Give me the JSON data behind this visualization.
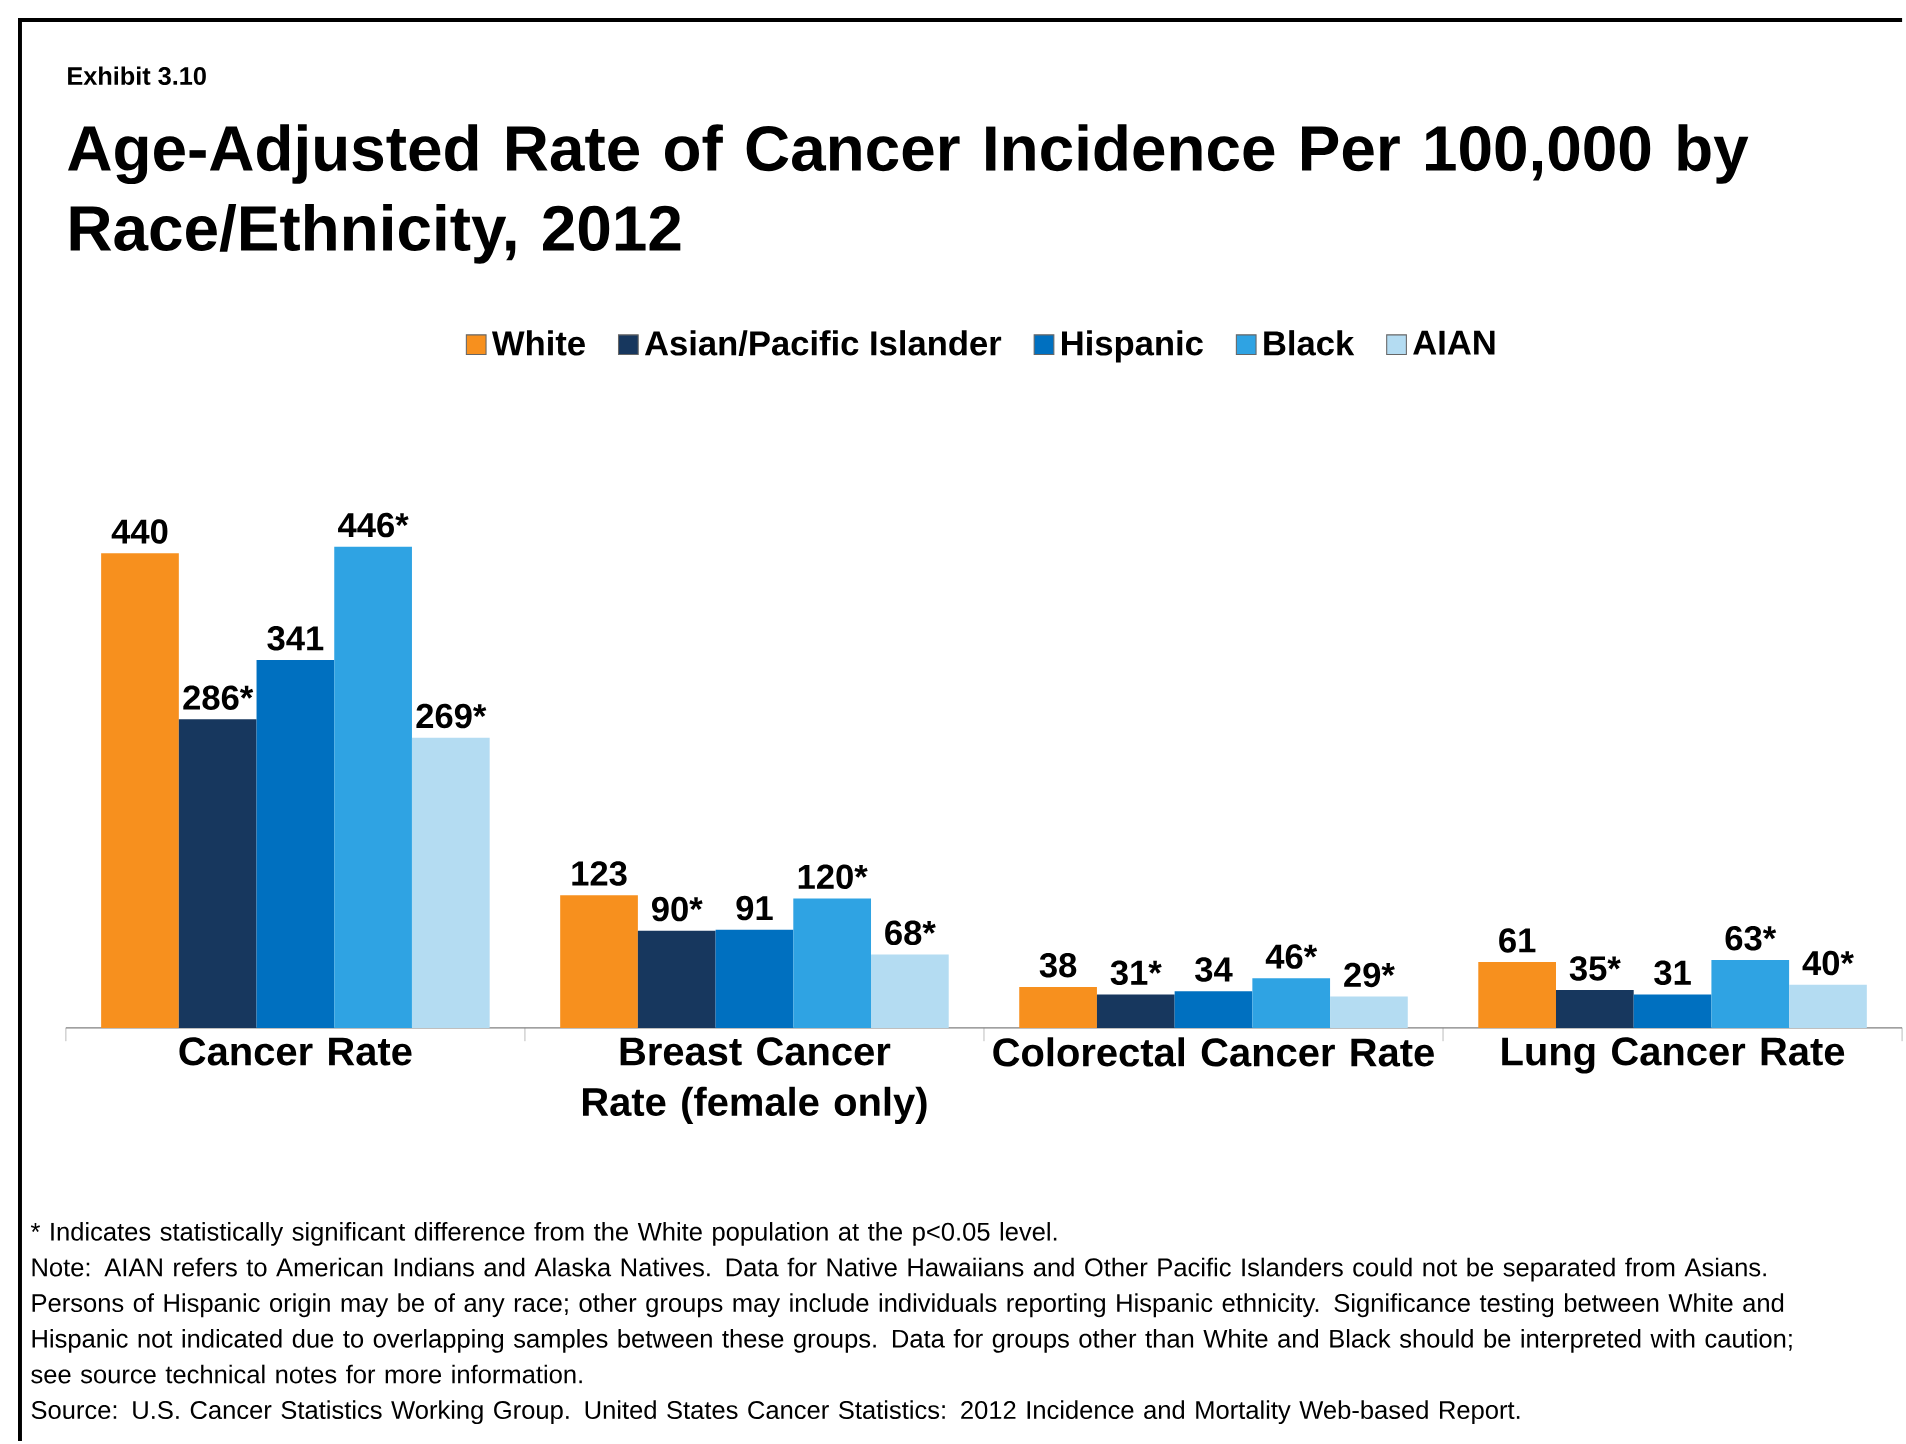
{
  "chart_data": {
    "type": "bar",
    "title": "Age-Adjusted Rate of Cancer Incidence Per 100,000 by Race/Ethnicity, 2012",
    "categories": [
      "Cancer Rate",
      "Breast Cancer Rate (female only)",
      "Colorectal Cancer Rate",
      "Lung Cancer Rate"
    ],
    "series": [
      {
        "name": "White",
        "color": "#f7901e",
        "values": [
          440,
          123,
          38,
          61
        ],
        "value_labels": [
          "440",
          "123",
          "38",
          "61"
        ]
      },
      {
        "name": "Asian/Pacific Islander",
        "color": "#17375e",
        "values": [
          286,
          90,
          31,
          35
        ],
        "value_labels": [
          "286*",
          "90*",
          "31*",
          "35*"
        ]
      },
      {
        "name": "Hispanic",
        "color": "#0070c0",
        "values": [
          341,
          91,
          34,
          31
        ],
        "value_labels": [
          "341",
          "91",
          "34",
          "31"
        ]
      },
      {
        "name": "Black",
        "color": "#2fa3e3",
        "values": [
          446,
          120,
          46,
          63
        ],
        "value_labels": [
          "446*",
          "120*",
          "46*",
          "63*"
        ]
      },
      {
        "name": "AIAN",
        "color": "#b4dcf2",
        "values": [
          269,
          68,
          29,
          40
        ],
        "value_labels": [
          "269*",
          "68*",
          "29*",
          "40*"
        ]
      }
    ],
    "legend": "top",
    "annotations": [
      "Exhibit 3.10",
      "* Indicates statistically significant difference from the White population at the p<0.05 level.",
      "Note: AIAN refers to American Indians and Alaska Natives. Data for Native Hawaiians and Other Pacific Islanders could not be separated from Asians. Persons of Hispanic origin may be of any race; other groups may include individuals reporting Hispanic ethnicity. Significance testing between White and Hispanic not indicated due to overlapping samples between these groups. Data for groups other than White and Black should be interpreted with caution; see source technical notes for more information.",
      "Source: U.S. Cancer Statistics Working Group. United States Cancer Statistics: 2012 Incidence and Mortality Web-based Report."
    ]
  }
}
